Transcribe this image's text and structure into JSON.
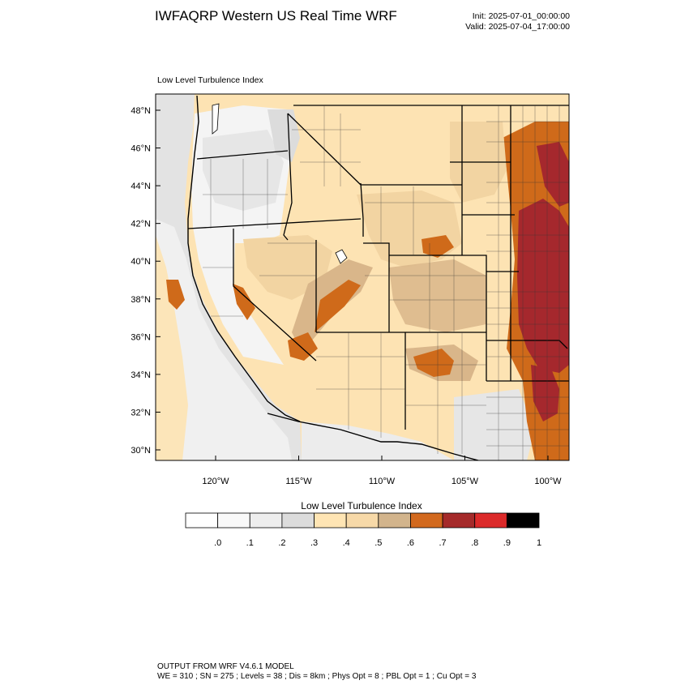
{
  "header": {
    "title": "IWFAQRP Western US Real Time WRF",
    "init": "Init: 2025-07-01_00:00:00",
    "valid": "Valid: 2025-07-04_17:00:00"
  },
  "map": {
    "field_title": "Low Level Turbulence Index",
    "lat_labels": [
      "48°N",
      "46°N",
      "44°N",
      "42°N",
      "40°N",
      "38°N",
      "36°N",
      "34°N",
      "32°N",
      "30°N"
    ],
    "lon_labels": [
      "120°W",
      "115°W",
      "110°W",
      "105°W",
      "100°W"
    ],
    "lat_values": [
      48,
      46,
      44,
      42,
      40,
      38,
      36,
      34,
      32,
      30
    ],
    "lon_values": [
      -120,
      -115,
      -110,
      -105,
      -100
    ]
  },
  "colorbar": {
    "title": "Low Level Turbulence Index",
    "tick_labels": [
      ".0",
      ".1",
      ".2",
      ".3",
      ".4",
      ".5",
      ".6",
      ".7",
      ".8",
      ".9",
      "1"
    ],
    "colors": [
      "#ffffff",
      "#f9f9f9",
      "#eeeeee",
      "#dcdcdc",
      "#ffe5b4",
      "#f7d9a8",
      "#d2b48c",
      "#d2691e",
      "#a52a2a",
      "#dc2a2a",
      "#000000"
    ]
  },
  "footer": {
    "line1": "OUTPUT FROM WRF V4.6.1 MODEL",
    "line2": "WE = 310 ; SN = 275 ; Levels = 38 ; Dis = 8km ; Phys Opt = 8 ; PBL Opt = 1 ; Cu Opt = 3"
  }
}
